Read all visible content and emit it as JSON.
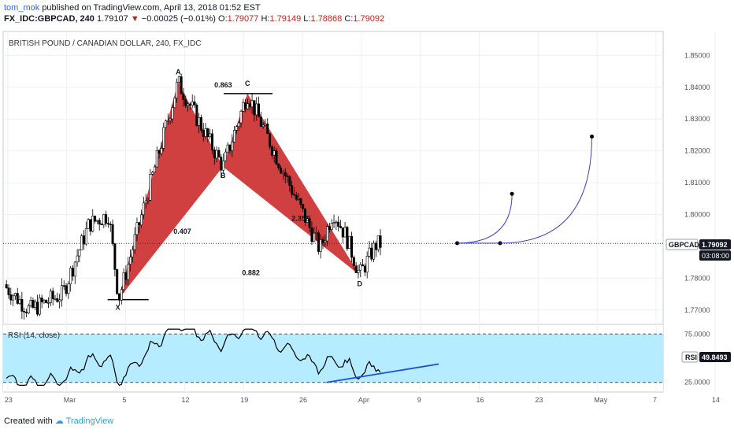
{
  "header": {
    "author": "tom_mok",
    "published": "published on TradingView.com, April 13, 2018 01:52 EST",
    "symbol": "FX_IDC:GBPCAD, 240",
    "last": "1.79107",
    "arrow": "▼",
    "change": "−0.00025 (−0.01%)",
    "o_label": "O:",
    "o": "1.79077",
    "h_label": "H:",
    "h": "1.79149",
    "l_label": "L:",
    "l": "1.78868",
    "c_label": "C:",
    "c": "1.79092"
  },
  "chart_data": [
    {
      "type": "candlestick",
      "title": "BRITISH POUND / CANADIAN DOLLAR, 240, FX_IDC",
      "y_ticks": [
        "1.85000",
        "1.84000",
        "1.83000",
        "1.82000",
        "1.81000",
        "1.80000",
        "1.79000",
        "1.78000",
        "1.77000"
      ],
      "ylim": [
        1.7655,
        1.8575
      ],
      "x_ticks": [
        "23",
        "Mar",
        "5",
        "12",
        "19",
        "26",
        "Apr",
        "9",
        "16",
        "23",
        "May",
        "7",
        "14"
      ],
      "last_price_label": "GBPCAD",
      "last_price": "1.79092",
      "countdown": "03:08:00",
      "pattern_points": [
        {
          "name": "X",
          "x": 0.175,
          "y": 1.7735
        },
        {
          "name": "A",
          "x": 0.265,
          "y": 1.8415
        },
        {
          "name": "B",
          "x": 0.333,
          "y": 1.815
        },
        {
          "name": "C",
          "x": 0.37,
          "y": 1.838
        },
        {
          "name": "D",
          "x": 0.54,
          "y": 1.781
        }
      ],
      "ratios": [
        {
          "text": "0.863",
          "x": 0.32,
          "y": 1.84
        },
        {
          "text": "0.407",
          "x": 0.258,
          "y": 1.794
        },
        {
          "text": "2.356",
          "x": 0.437,
          "y": 1.798
        },
        {
          "text": "0.882",
          "x": 0.362,
          "y": 1.781
        }
      ],
      "projection_start": 1.791,
      "projection_targets": [
        1.8065,
        1.8245
      ],
      "colors": {
        "pattern": "#cc2b2b",
        "candle": "#000000",
        "projection": "#3f3fc8"
      }
    },
    {
      "type": "line",
      "title": "RSI (14, close)",
      "y_ticks": [
        "75.0000",
        "25.0000"
      ],
      "ylim": [
        15,
        85
      ],
      "band": [
        25,
        75
      ],
      "last_label": "RSI",
      "last_value": "49.8493",
      "trendline": [
        [
          0.49,
          25
        ],
        [
          0.66,
          44
        ]
      ],
      "colors": {
        "band": "#b6ecff",
        "line": "#000000",
        "trend": "#1d4fd6"
      }
    }
  ],
  "footer": {
    "created": "Created with",
    "brand": "TradingView"
  }
}
